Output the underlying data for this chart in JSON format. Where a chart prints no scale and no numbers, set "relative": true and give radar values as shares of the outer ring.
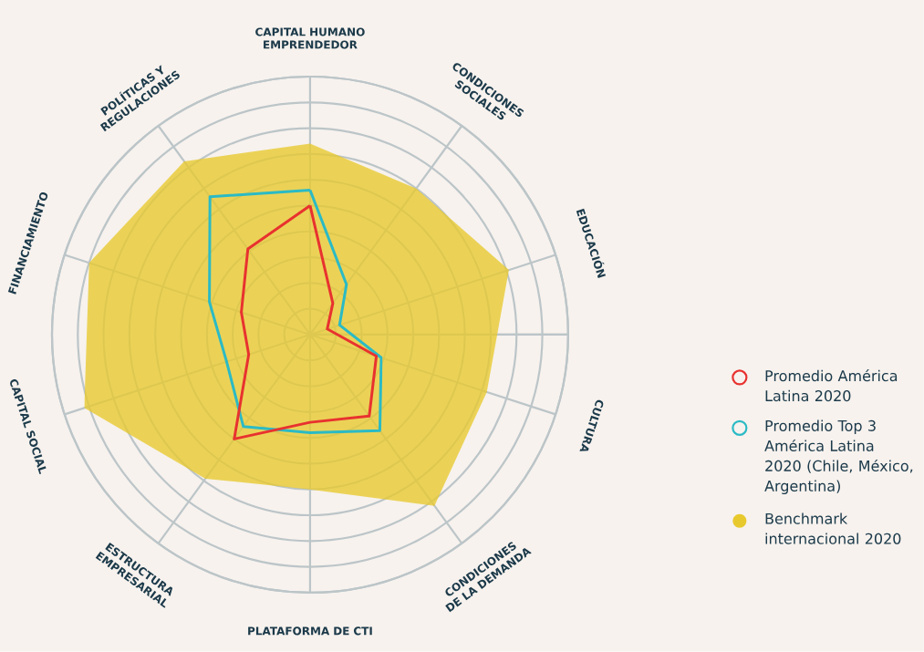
{
  "chart_data": {
    "type": "radar",
    "relative": true,
    "grid": true,
    "legend": "right",
    "categories": [
      "CAPITAL HUMANO EMPRENDEDOR",
      "CONDICIONES SOCIALES",
      "EDUCACIÓN",
      "CULTURA",
      "CONDICIONES DE LA DEMANDA",
      "PLATAFORMA DE CTI",
      "ESTRUCTURA EMPRESARIAL",
      "CAPITAL SOCIAL",
      "FINANCIAMIENTO",
      "POLÍTICAS Y REGULACIONES"
    ],
    "series": [
      {
        "name": "Promedio América Latina 2020",
        "color": "#e8322f",
        "values": [
          0.5,
          0.15,
          0.07,
          0.27,
          0.39,
          0.34,
          0.5,
          0.25,
          0.28,
          0.41
        ]
      },
      {
        "name": "Promedio Top 3 América Latina 2020 (Chile, México, Argentina)",
        "color": "#2bbac5",
        "values": [
          0.56,
          0.24,
          0.12,
          0.29,
          0.46,
          0.38,
          0.44,
          0.34,
          0.41,
          0.66
        ]
      },
      {
        "name": "Benchmark internacional 2020",
        "type": "area",
        "color": "#e8c92d",
        "values": [
          0.74,
          0.7,
          0.81,
          0.72,
          0.82,
          0.6,
          0.69,
          0.92,
          0.9,
          0.83
        ]
      }
    ]
  }
}
